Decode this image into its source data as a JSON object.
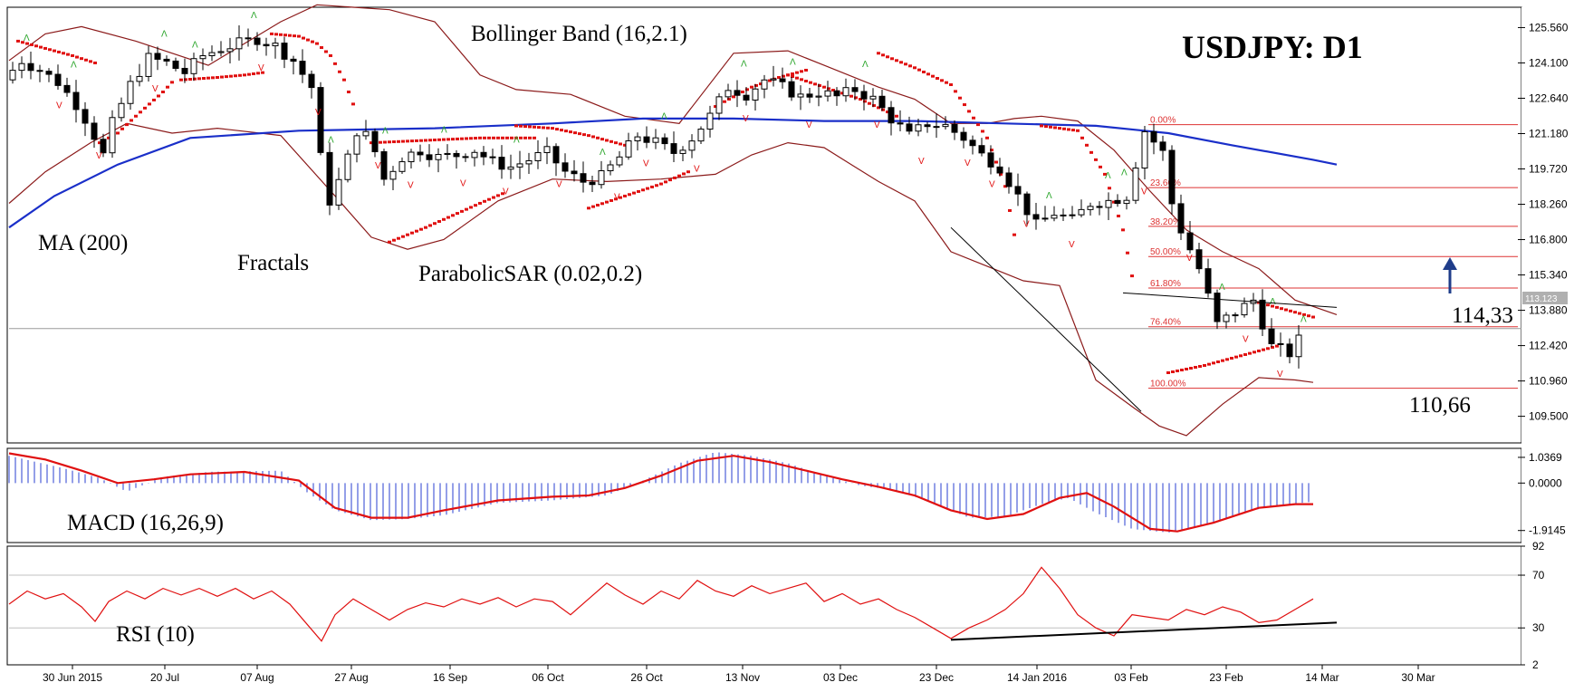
{
  "chart_data": {
    "type": "candlestick",
    "title": "USDJPY: D1",
    "main_panel": {
      "y_ticks": [
        "125.560",
        "124.100",
        "122.640",
        "121.180",
        "119.720",
        "118.260",
        "116.800",
        "115.340",
        "113.880",
        "112.420",
        "110.960",
        "109.500"
      ],
      "ylim": [
        108.4,
        126.4
      ],
      "current_price": "113.123",
      "indicator_labels": {
        "bollinger": "Bollinger Band (16,2.1)",
        "ma": "MA (200)",
        "fractals": "Fractals",
        "sar": "ParabolicSAR (0.02,0.2)"
      },
      "level_labels": {
        "resistance": "114,33",
        "support": "110,66"
      },
      "fibonacci": [
        {
          "label": "0.00%",
          "price": 121.55
        },
        {
          "label": "23.60%",
          "price": 118.95
        },
        {
          "label": "38.20%",
          "price": 117.35
        },
        {
          "label": "50.00%",
          "price": 116.1
        },
        {
          "label": "61.80%",
          "price": 114.8
        },
        {
          "label": "76.40%",
          "price": 113.2
        },
        {
          "label": "100.00%",
          "price": 110.66
        }
      ],
      "ma200": [
        [
          0,
          117.3
        ],
        [
          50,
          118.6
        ],
        [
          120,
          119.9
        ],
        [
          200,
          121.0
        ],
        [
          320,
          121.3
        ],
        [
          470,
          121.4
        ],
        [
          600,
          121.6
        ],
        [
          700,
          121.8
        ],
        [
          800,
          121.8
        ],
        [
          900,
          121.7
        ],
        [
          1000,
          121.7
        ],
        [
          1100,
          121.6
        ],
        [
          1200,
          121.5
        ],
        [
          1280,
          121.2
        ],
        [
          1350,
          120.7
        ],
        [
          1440,
          120.1
        ],
        [
          1466,
          119.9
        ]
      ],
      "bb_upper": [
        [
          0,
          124.2
        ],
        [
          40,
          125.3
        ],
        [
          80,
          125.6
        ],
        [
          140,
          125.0
        ],
        [
          220,
          124.0
        ],
        [
          300,
          125.8
        ],
        [
          340,
          126.5
        ],
        [
          380,
          126.4
        ],
        [
          420,
          126.3
        ],
        [
          470,
          125.8
        ],
        [
          520,
          123.6
        ],
        [
          560,
          123.0
        ],
        [
          620,
          122.8
        ],
        [
          680,
          121.9
        ],
        [
          740,
          121.6
        ],
        [
          800,
          124.5
        ],
        [
          860,
          124.6
        ],
        [
          900,
          124.0
        ],
        [
          960,
          123.1
        ],
        [
          1000,
          122.6
        ],
        [
          1040,
          121.6
        ],
        [
          1080,
          121.6
        ],
        [
          1110,
          121.8
        ],
        [
          1140,
          121.9
        ],
        [
          1180,
          121.7
        ],
        [
          1220,
          120.5
        ],
        [
          1260,
          118.8
        ],
        [
          1300,
          117.2
        ],
        [
          1340,
          116.3
        ],
        [
          1380,
          115.6
        ],
        [
          1420,
          114.3
        ],
        [
          1466,
          113.7
        ]
      ],
      "bb_lower": [
        [
          0,
          118.3
        ],
        [
          40,
          119.6
        ],
        [
          90,
          120.8
        ],
        [
          130,
          121.6
        ],
        [
          180,
          121.2
        ],
        [
          230,
          121.4
        ],
        [
          300,
          121.1
        ],
        [
          360,
          118.6
        ],
        [
          400,
          116.9
        ],
        [
          440,
          116.4
        ],
        [
          480,
          116.8
        ],
        [
          540,
          118.4
        ],
        [
          600,
          119.3
        ],
        [
          660,
          119.2
        ],
        [
          720,
          119.3
        ],
        [
          780,
          119.5
        ],
        [
          820,
          120.3
        ],
        [
          860,
          120.8
        ],
        [
          900,
          120.6
        ],
        [
          930,
          119.9
        ],
        [
          960,
          119.2
        ],
        [
          1000,
          118.4
        ],
        [
          1040,
          116.3
        ],
        [
          1080,
          115.7
        ],
        [
          1120,
          115.1
        ],
        [
          1160,
          114.9
        ],
        [
          1200,
          111.0
        ],
        [
          1240,
          109.9
        ],
        [
          1270,
          109.1
        ],
        [
          1300,
          108.7
        ],
        [
          1340,
          110.0
        ],
        [
          1380,
          111.1
        ],
        [
          1420,
          111.0
        ],
        [
          1440,
          110.9
        ]
      ],
      "sar_segments": [
        [
          [
            10,
            125.0
          ],
          [
            40,
            124.7
          ],
          [
            70,
            124.4
          ],
          [
            95,
            124.1
          ]
        ],
        [
          [
            100,
            120.8
          ],
          [
            120,
            121.2
          ],
          [
            140,
            121.9
          ],
          [
            155,
            122.4
          ],
          [
            170,
            122.9
          ],
          [
            180,
            123.3
          ]
        ],
        [
          [
            190,
            123.4
          ],
          [
            230,
            123.5
          ],
          [
            260,
            123.6
          ],
          [
            280,
            123.7
          ]
        ],
        [
          [
            290,
            125.3
          ],
          [
            320,
            125.2
          ],
          [
            340,
            124.9
          ],
          [
            355,
            124.4
          ],
          [
            370,
            123.4
          ],
          [
            380,
            122.4
          ]
        ],
        [
          [
            400,
            120.8
          ],
          [
            460,
            120.9
          ],
          [
            520,
            121.0
          ],
          [
            580,
            121.0
          ]
        ],
        [
          [
            420,
            116.7
          ],
          [
            460,
            117.3
          ],
          [
            490,
            117.8
          ],
          [
            520,
            118.3
          ],
          [
            545,
            118.7
          ]
        ],
        [
          [
            560,
            121.5
          ],
          [
            600,
            121.4
          ],
          [
            640,
            121.1
          ],
          [
            680,
            120.7
          ]
        ],
        [
          [
            640,
            118.1
          ],
          [
            680,
            118.6
          ],
          [
            720,
            119.1
          ],
          [
            750,
            119.6
          ]
        ],
        [
          [
            780,
            122.3
          ],
          [
            800,
            122.7
          ],
          [
            820,
            123.1
          ],
          [
            850,
            123.5
          ],
          [
            880,
            123.8
          ]
        ],
        [
          [
            860,
            123.6
          ],
          [
            900,
            123.1
          ],
          [
            940,
            122.6
          ],
          [
            980,
            121.9
          ]
        ],
        [
          [
            960,
            124.5
          ],
          [
            1000,
            123.9
          ],
          [
            1040,
            123.2
          ],
          [
            1080,
            121.0
          ],
          [
            1100,
            119.0
          ],
          [
            1110,
            117.0
          ]
        ],
        [
          [
            1140,
            121.5
          ],
          [
            1180,
            121.3
          ],
          [
            1210,
            119.5
          ],
          [
            1230,
            117.2
          ],
          [
            1240,
            115.3
          ]
        ],
        [
          [
            1280,
            111.3
          ],
          [
            1320,
            111.6
          ],
          [
            1360,
            112.0
          ],
          [
            1400,
            112.4
          ]
        ],
        [
          [
            1380,
            114.2
          ],
          [
            1410,
            113.9
          ],
          [
            1440,
            113.6
          ]
        ]
      ],
      "trendlines": [
        {
          "from": [
            1040,
            117.3
          ],
          "to": [
            1250,
            109.7
          ]
        },
        {
          "from": [
            1230,
            114.6
          ],
          "to": [
            1466,
            114.0
          ]
        }
      ]
    },
    "macd_panel": {
      "label": "MACD (16,26,9)",
      "y_ticks": [
        "1.0369",
        "0.0000",
        "-1.9145"
      ],
      "ylim": [
        -2.4,
        1.4
      ],
      "signal": [
        [
          0,
          1.2
        ],
        [
          40,
          0.95
        ],
        [
          80,
          0.5
        ],
        [
          120,
          0.0
        ],
        [
          160,
          0.15
        ],
        [
          200,
          0.35
        ],
        [
          260,
          0.45
        ],
        [
          320,
          0.1
        ],
        [
          360,
          -1.0
        ],
        [
          400,
          -1.4
        ],
        [
          440,
          -1.4
        ],
        [
          480,
          -1.1
        ],
        [
          540,
          -0.7
        ],
        [
          600,
          -0.55
        ],
        [
          640,
          -0.5
        ],
        [
          680,
          -0.2
        ],
        [
          720,
          0.3
        ],
        [
          760,
          0.9
        ],
        [
          800,
          1.1
        ],
        [
          840,
          0.85
        ],
        [
          880,
          0.5
        ],
        [
          920,
          0.15
        ],
        [
          960,
          -0.15
        ],
        [
          1000,
          -0.5
        ],
        [
          1040,
          -1.1
        ],
        [
          1080,
          -1.45
        ],
        [
          1120,
          -1.25
        ],
        [
          1160,
          -0.6
        ],
        [
          1190,
          -0.4
        ],
        [
          1220,
          -0.95
        ],
        [
          1260,
          -1.85
        ],
        [
          1290,
          -1.95
        ],
        [
          1330,
          -1.6
        ],
        [
          1380,
          -1.0
        ],
        [
          1420,
          -0.85
        ],
        [
          1440,
          -0.85
        ]
      ],
      "histogram": [
        [
          0,
          1.1
        ],
        [
          60,
          0.6
        ],
        [
          100,
          0.2
        ],
        [
          130,
          -0.35
        ],
        [
          170,
          0.25
        ],
        [
          220,
          0.45
        ],
        [
          300,
          0.5
        ],
        [
          330,
          -0.4
        ],
        [
          360,
          -1.1
        ],
        [
          400,
          -1.5
        ],
        [
          440,
          -1.45
        ],
        [
          480,
          -1.3
        ],
        [
          540,
          -0.8
        ],
        [
          600,
          -0.7
        ],
        [
          660,
          -0.5
        ],
        [
          700,
          0.1
        ],
        [
          740,
          0.8
        ],
        [
          780,
          1.25
        ],
        [
          820,
          1.1
        ],
        [
          860,
          0.8
        ],
        [
          900,
          0.3
        ],
        [
          940,
          -0.1
        ],
        [
          980,
          -0.3
        ],
        [
          1020,
          -0.8
        ],
        [
          1060,
          -1.4
        ],
        [
          1100,
          -1.35
        ],
        [
          1140,
          -0.85
        ],
        [
          1170,
          -0.6
        ],
        [
          1200,
          -1.2
        ],
        [
          1240,
          -1.85
        ],
        [
          1280,
          -2.0
        ],
        [
          1320,
          -1.7
        ],
        [
          1360,
          -1.2
        ],
        [
          1400,
          -0.9
        ],
        [
          1440,
          -0.75
        ]
      ]
    },
    "rsi_panel": {
      "label": "RSI (10)",
      "y_ticks": [
        "92",
        "70",
        "30",
        "2"
      ],
      "ylim": [
        2,
        92
      ],
      "values": [
        [
          0,
          48
        ],
        [
          20,
          58
        ],
        [
          40,
          52
        ],
        [
          60,
          56
        ],
        [
          80,
          46
        ],
        [
          95,
          35
        ],
        [
          110,
          50
        ],
        [
          130,
          58
        ],
        [
          150,
          52
        ],
        [
          170,
          60
        ],
        [
          190,
          55
        ],
        [
          210,
          60
        ],
        [
          230,
          54
        ],
        [
          250,
          60
        ],
        [
          270,
          52
        ],
        [
          290,
          58
        ],
        [
          310,
          48
        ],
        [
          330,
          32
        ],
        [
          345,
          20
        ],
        [
          360,
          40
        ],
        [
          380,
          52
        ],
        [
          400,
          44
        ],
        [
          420,
          36
        ],
        [
          440,
          44
        ],
        [
          460,
          49
        ],
        [
          480,
          46
        ],
        [
          500,
          52
        ],
        [
          520,
          48
        ],
        [
          540,
          53
        ],
        [
          560,
          46
        ],
        [
          580,
          52
        ],
        [
          600,
          50
        ],
        [
          620,
          40
        ],
        [
          640,
          52
        ],
        [
          660,
          64
        ],
        [
          680,
          55
        ],
        [
          700,
          48
        ],
        [
          720,
          58
        ],
        [
          740,
          52
        ],
        [
          760,
          66
        ],
        [
          780,
          58
        ],
        [
          800,
          54
        ],
        [
          820,
          62
        ],
        [
          840,
          56
        ],
        [
          860,
          60
        ],
        [
          880,
          64
        ],
        [
          900,
          50
        ],
        [
          920,
          56
        ],
        [
          940,
          48
        ],
        [
          960,
          52
        ],
        [
          980,
          44
        ],
        [
          1000,
          38
        ],
        [
          1020,
          30
        ],
        [
          1040,
          22
        ],
        [
          1060,
          30
        ],
        [
          1080,
          36
        ],
        [
          1100,
          44
        ],
        [
          1120,
          56
        ],
        [
          1140,
          76
        ],
        [
          1160,
          60
        ],
        [
          1180,
          40
        ],
        [
          1200,
          30
        ],
        [
          1220,
          24
        ],
        [
          1240,
          40
        ],
        [
          1260,
          38
        ],
        [
          1280,
          36
        ],
        [
          1300,
          44
        ],
        [
          1320,
          40
        ],
        [
          1340,
          46
        ],
        [
          1360,
          42
        ],
        [
          1380,
          34
        ],
        [
          1400,
          36
        ],
        [
          1420,
          44
        ],
        [
          1440,
          52
        ]
      ],
      "trendline": {
        "from": [
          1040,
          21
        ],
        "to": [
          1466,
          34
        ]
      }
    },
    "x_labels": [
      {
        "label": "30 Jun 2015",
        "x": 80
      },
      {
        "label": "20 Jul",
        "x": 182
      },
      {
        "label": "07 Aug",
        "x": 284
      },
      {
        "label": "27 Aug",
        "x": 388
      },
      {
        "label": "16 Sep",
        "x": 497
      },
      {
        "label": "06 Oct",
        "x": 605
      },
      {
        "label": "26 Oct",
        "x": 714
      },
      {
        "label": "13 Nov",
        "x": 820
      },
      {
        "label": "03 Dec",
        "x": 928
      },
      {
        "label": "23 Dec",
        "x": 1034
      },
      {
        "label": "14 Jan 2016",
        "x": 1145
      },
      {
        "label": "03 Feb",
        "x": 1249
      },
      {
        "label": "23 Feb",
        "x": 1354
      },
      {
        "label": "14 Mar",
        "x": 1460
      },
      {
        "label": "30 Mar",
        "x": 1566
      }
    ]
  }
}
